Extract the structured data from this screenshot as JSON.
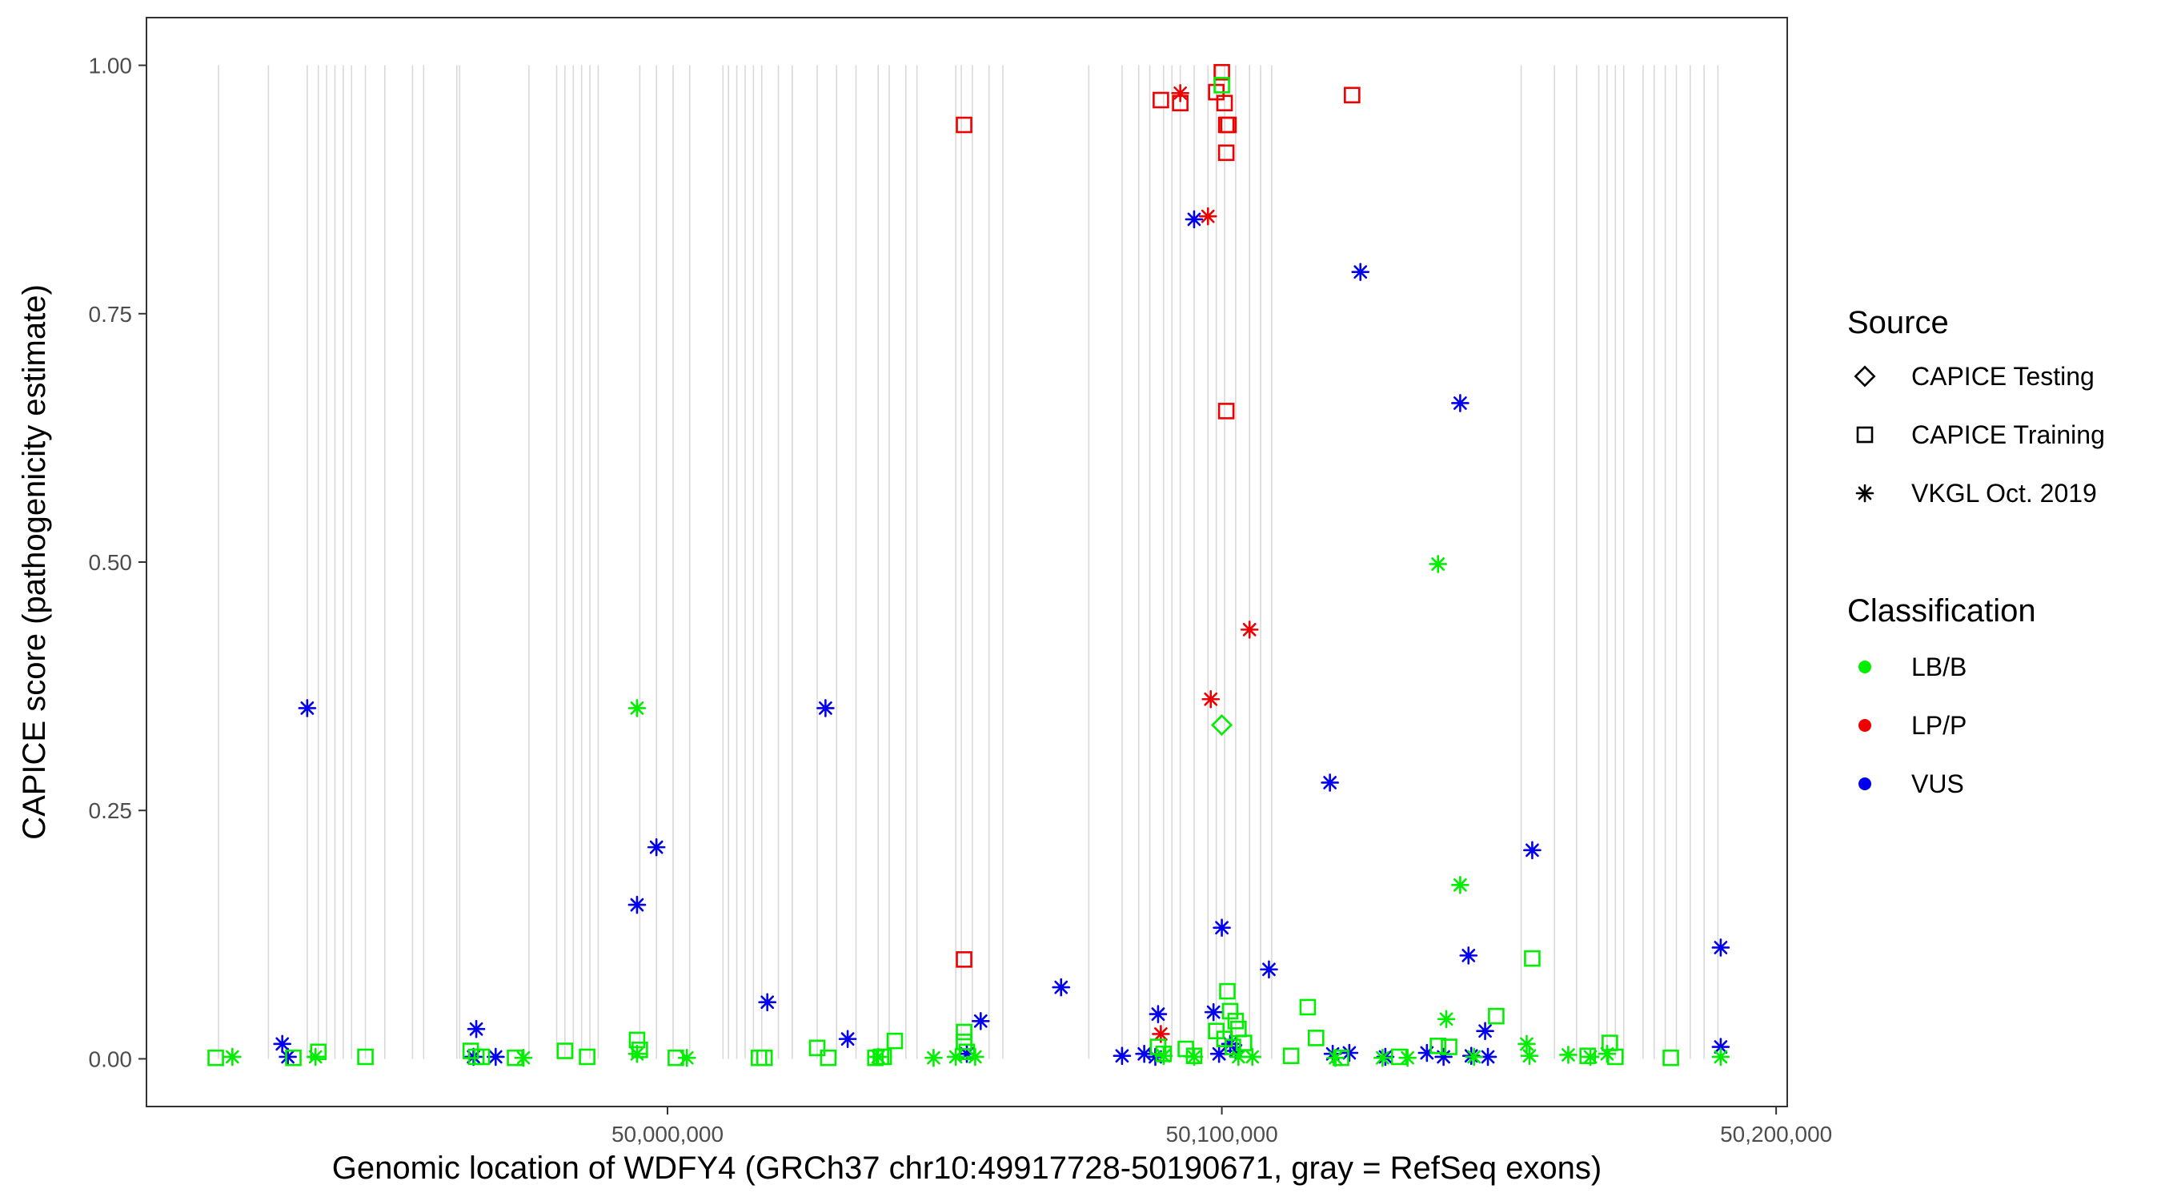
{
  "chart_data": {
    "type": "scatter",
    "title": "",
    "xlabel": "Genomic location of WDFY4 (GRCh37 chr10:49917728-50190671, gray = RefSeq exons)",
    "ylabel": "CAPICE score (pathogenicity estimate)",
    "xlim": [
      49906000,
      50202000
    ],
    "ylim": [
      -0.048,
      1.048
    ],
    "x_ticks": [
      50000000,
      50100000,
      50200000
    ],
    "x_tick_labels": [
      "50,000,000",
      "50,100,000",
      "50,200,000"
    ],
    "y_ticks": [
      0,
      0.25,
      0.5,
      0.75,
      1
    ],
    "y_tick_labels": [
      "0.00",
      "0.25",
      "0.50",
      "0.75",
      "1.00"
    ],
    "grid": false,
    "exon_lines": [
      49919000,
      49928000,
      49935000,
      49937000,
      49938500,
      49940000,
      49941500,
      49943000,
      49945500,
      49949000,
      49954000,
      49956000,
      49962000,
      49962500,
      49975000,
      49980000,
      49981500,
      49983000,
      49984500,
      49986000,
      49987500,
      49995000,
      49998000,
      50001000,
      50004000,
      50010000,
      50011000,
      50012500,
      50014000,
      50015500,
      50017000,
      50020000,
      50022500,
      50027000,
      50030500,
      50034000,
      50038000,
      50040000,
      50043000,
      50045000,
      50052000,
      50053000,
      50055000,
      50058000,
      50060500,
      50076000,
      50082000,
      50085000,
      50087000,
      50089500,
      50091000,
      50092500,
      50095000,
      50097500,
      50099000,
      50100500,
      50102500,
      50105000,
      50107000,
      50109000,
      50154000,
      50160000,
      50164000,
      50168000,
      50169500,
      50171000,
      50172500,
      50176000,
      50178000,
      50180000,
      50182000,
      50184500,
      50187000,
      50189500
    ],
    "colors": {
      "LB/B": "#00ee00",
      "LP/P": "#ee0000",
      "VUS": "#0000ee",
      "exon": "#d9d9d9"
    },
    "legend": {
      "position": "right",
      "source_title": "Source",
      "source_entries": [
        {
          "label": "CAPICE Testing",
          "shape": "diamond"
        },
        {
          "label": "CAPICE Training",
          "shape": "square"
        },
        {
          "label": "VKGL Oct. 2019",
          "shape": "asterisk"
        }
      ],
      "class_title": "Classification",
      "class_entries": [
        {
          "label": "LB/B",
          "color": "#00ee00"
        },
        {
          "label": "LP/P",
          "color": "#ee0000"
        },
        {
          "label": "VUS",
          "color": "#0000ee"
        }
      ]
    },
    "series": [
      {
        "source": "CAPICE Training",
        "classification": "LP/P",
        "shape": "square",
        "color": "#ee0000",
        "points": [
          [
            50053500,
            0.94
          ],
          [
            50053500,
            0.1
          ],
          [
            50089000,
            0.965
          ],
          [
            50092500,
            0.962
          ],
          [
            50099000,
            0.973
          ],
          [
            50100000,
            0.993
          ],
          [
            50100500,
            0.962
          ],
          [
            50100800,
            0.94
          ],
          [
            50101200,
            0.94
          ],
          [
            50100800,
            0.912
          ],
          [
            50100800,
            0.652
          ],
          [
            50123500,
            0.97
          ]
        ]
      },
      {
        "source": "VKGL Oct. 2019",
        "classification": "LP/P",
        "shape": "asterisk",
        "color": "#ee0000",
        "points": [
          [
            50092500,
            0.972
          ],
          [
            50097500,
            0.848
          ],
          [
            50098000,
            0.362
          ],
          [
            50105000,
            0.432
          ],
          [
            50089000,
            0.025
          ]
        ]
      },
      {
        "source": "VKGL Oct. 2019",
        "classification": "VUS",
        "shape": "asterisk",
        "color": "#0000ee",
        "points": [
          [
            49935000,
            0.353
          ],
          [
            49930500,
            0.015
          ],
          [
            49931500,
            0.002
          ],
          [
            49965500,
            0.03
          ],
          [
            49965000,
            0.002
          ],
          [
            49969000,
            0.002
          ],
          [
            49994500,
            0.155
          ],
          [
            49998000,
            0.213
          ],
          [
            50018000,
            0.057
          ],
          [
            50028500,
            0.353
          ],
          [
            50032500,
            0.02
          ],
          [
            50054000,
            0.005
          ],
          [
            50056500,
            0.038
          ],
          [
            50071000,
            0.072
          ],
          [
            50082000,
            0.003
          ],
          [
            50086000,
            0.005
          ],
          [
            50088500,
            0.045
          ],
          [
            50088000,
            0.002
          ],
          [
            50095000,
            0.845
          ],
          [
            50098500,
            0.047
          ],
          [
            50100000,
            0.132
          ],
          [
            50099500,
            0.005
          ],
          [
            50101500,
            0.015
          ],
          [
            50102500,
            0.008
          ],
          [
            50108500,
            0.09
          ],
          [
            50119500,
            0.278
          ],
          [
            50120000,
            0.005
          ],
          [
            50123000,
            0.006
          ],
          [
            50125000,
            0.792
          ],
          [
            50129500,
            0.002
          ],
          [
            50137000,
            0.006
          ],
          [
            50140000,
            0.002
          ],
          [
            50143000,
            0.66
          ],
          [
            50144500,
            0.104
          ],
          [
            50145000,
            0.003
          ],
          [
            50147500,
            0.028
          ],
          [
            50148000,
            0.002
          ],
          [
            50156000,
            0.21
          ],
          [
            50190000,
            0.112
          ],
          [
            50190000,
            0.012
          ]
        ]
      },
      {
        "source": "VKGL Oct. 2019",
        "classification": "LB/B",
        "shape": "asterisk",
        "color": "#00ee00",
        "points": [
          [
            49921500,
            0.002
          ],
          [
            49936500,
            0.002
          ],
          [
            49974000,
            0.001
          ],
          [
            49994500,
            0.353
          ],
          [
            49994500,
            0.005
          ],
          [
            50003500,
            0.001
          ],
          [
            50038000,
            0.002
          ],
          [
            50048000,
            0.001
          ],
          [
            50052000,
            0.002
          ],
          [
            50055500,
            0.002
          ],
          [
            50089500,
            0.003
          ],
          [
            50095000,
            0.002
          ],
          [
            50103000,
            0.002
          ],
          [
            50105500,
            0.002
          ],
          [
            50120500,
            0.001
          ],
          [
            50129000,
            0.001
          ],
          [
            50133500,
            0.001
          ],
          [
            50139000,
            0.498
          ],
          [
            50140500,
            0.04
          ],
          [
            50143000,
            0.175
          ],
          [
            50145500,
            0.002
          ],
          [
            50155000,
            0.015
          ],
          [
            50155500,
            0.003
          ],
          [
            50162500,
            0.004
          ],
          [
            50166500,
            0.002
          ],
          [
            50169500,
            0.005
          ],
          [
            50190000,
            0.002
          ]
        ]
      },
      {
        "source": "CAPICE Training",
        "classification": "LB/B",
        "shape": "square",
        "color": "#00ee00",
        "points": [
          [
            49918500,
            0.001
          ],
          [
            49932500,
            0.001
          ],
          [
            49937000,
            0.007
          ],
          [
            49945500,
            0.002
          ],
          [
            49964500,
            0.008
          ],
          [
            49965500,
            0.002
          ],
          [
            49966500,
            0.002
          ],
          [
            49972500,
            0.001
          ],
          [
            49981500,
            0.008
          ],
          [
            49985500,
            0.002
          ],
          [
            49994500,
            0.019
          ],
          [
            49995000,
            0.009
          ],
          [
            50001500,
            0.001
          ],
          [
            50016500,
            0.001
          ],
          [
            50017500,
            0.001
          ],
          [
            50027000,
            0.011
          ],
          [
            50029000,
            0.001
          ],
          [
            50037500,
            0.001
          ],
          [
            50038500,
            0.002
          ],
          [
            50039000,
            0.002
          ],
          [
            50041000,
            0.018
          ],
          [
            50053500,
            0.027
          ],
          [
            50053500,
            0.017
          ],
          [
            50054000,
            0.007
          ],
          [
            50088500,
            0.012
          ],
          [
            50089500,
            0.005
          ],
          [
            50093500,
            0.01
          ],
          [
            50095000,
            0.003
          ],
          [
            50099000,
            0.028
          ],
          [
            50100500,
            0.02
          ],
          [
            50101000,
            0.068
          ],
          [
            50101500,
            0.048
          ],
          [
            50102000,
            0.012
          ],
          [
            50102500,
            0.038
          ],
          [
            50103000,
            0.03
          ],
          [
            50104000,
            0.016
          ],
          [
            50100000,
            0.98
          ],
          [
            50112500,
            0.003
          ],
          [
            50115500,
            0.052
          ],
          [
            50117000,
            0.021
          ],
          [
            50121500,
            0.001
          ],
          [
            50132000,
            0.002
          ],
          [
            50139000,
            0.013
          ],
          [
            50141000,
            0.012
          ],
          [
            50149500,
            0.043
          ],
          [
            50156000,
            0.101
          ],
          [
            50166000,
            0.003
          ],
          [
            50170000,
            0.016
          ],
          [
            50171000,
            0.002
          ],
          [
            50181000,
            0.001
          ]
        ]
      },
      {
        "source": "CAPICE Testing",
        "classification": "LB/B",
        "shape": "diamond",
        "color": "#00ee00",
        "points": [
          [
            50100000,
            0.336
          ]
        ]
      }
    ]
  }
}
